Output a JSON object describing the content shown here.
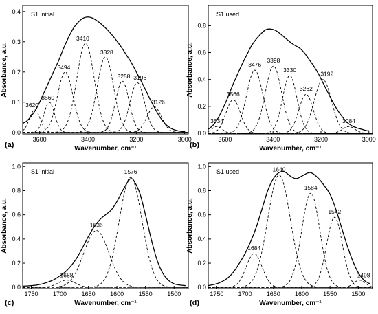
{
  "chart_data": [
    {
      "type": "line",
      "panel_label": "(a)",
      "annotation": "S1 initial",
      "xlabel": "Wavenumber, cm⁻¹",
      "ylabel": "Absorbance, a.u.",
      "xlim": [
        3670,
        2985
      ],
      "ylim": [
        -0.005,
        0.42
      ],
      "xticks": [
        3600,
        3400,
        3200,
        3000
      ],
      "xtick_labels": [
        "3600",
        "3400",
        "3200",
        "3000"
      ],
      "yticks": [
        0.0,
        0.1,
        0.2,
        0.3,
        0.4
      ],
      "ytick_labels": [
        "0.0",
        "0.1",
        "0.2",
        "0.3",
        "0.4"
      ],
      "envelope": {
        "x": [
          3670,
          3650,
          3620,
          3600,
          3580,
          3560,
          3540,
          3520,
          3500,
          3480,
          3460,
          3440,
          3420,
          3400,
          3380,
          3360,
          3340,
          3320,
          3300,
          3280,
          3260,
          3240,
          3220,
          3200,
          3180,
          3160,
          3140,
          3120,
          3100,
          3080,
          3060,
          3040,
          3020,
          3000
        ],
        "y": [
          0.03,
          0.04,
          0.07,
          0.1,
          0.135,
          0.17,
          0.205,
          0.24,
          0.28,
          0.315,
          0.345,
          0.365,
          0.378,
          0.382,
          0.378,
          0.368,
          0.355,
          0.34,
          0.322,
          0.302,
          0.28,
          0.255,
          0.23,
          0.2,
          0.17,
          0.138,
          0.105,
          0.075,
          0.048,
          0.028,
          0.015,
          0.008,
          0.004,
          0.003
        ]
      },
      "bands": [
        {
          "label": "3620",
          "center": 3620,
          "height": 0.075,
          "width": 22
        },
        {
          "label": "3560",
          "center": 3560,
          "height": 0.1,
          "width": 22
        },
        {
          "label": "3494",
          "center": 3494,
          "height": 0.2,
          "width": 32
        },
        {
          "label": "3410",
          "center": 3410,
          "height": 0.295,
          "width": 36
        },
        {
          "label": "3328",
          "center": 3328,
          "height": 0.25,
          "width": 34
        },
        {
          "label": "3258",
          "center": 3258,
          "height": 0.17,
          "width": 28
        },
        {
          "label": "3196",
          "center": 3196,
          "height": 0.165,
          "width": 30
        },
        {
          "label": "3126",
          "center": 3126,
          "height": 0.085,
          "width": 30
        }
      ]
    },
    {
      "type": "line",
      "panel_label": "(b)",
      "annotation": "S1 used",
      "xlabel": "Wavenumber, cm⁻¹",
      "ylabel": "Absorbance, a.u.",
      "xlim": [
        3670,
        2985
      ],
      "ylim": [
        -0.005,
        0.95
      ],
      "xticks": [
        3600,
        3400,
        3200,
        3000
      ],
      "xtick_labels": [
        "3600",
        "3400",
        "3200",
        "3000"
      ],
      "yticks": [
        0.0,
        0.2,
        0.4,
        0.6,
        0.8
      ],
      "ytick_labels": [
        "0.0",
        "0.2",
        "0.4",
        "0.6",
        "0.8"
      ],
      "envelope": {
        "x": [
          3670,
          3650,
          3630,
          3610,
          3590,
          3570,
          3550,
          3530,
          3510,
          3490,
          3470,
          3450,
          3430,
          3410,
          3390,
          3370,
          3350,
          3330,
          3310,
          3290,
          3270,
          3250,
          3230,
          3210,
          3190,
          3170,
          3150,
          3130,
          3110,
          3090,
          3070,
          3050,
          3030,
          3010,
          3000
        ],
        "y": [
          0.03,
          0.06,
          0.11,
          0.18,
          0.26,
          0.35,
          0.43,
          0.51,
          0.58,
          0.65,
          0.7,
          0.74,
          0.77,
          0.775,
          0.765,
          0.74,
          0.71,
          0.68,
          0.655,
          0.635,
          0.6,
          0.55,
          0.5,
          0.44,
          0.37,
          0.3,
          0.23,
          0.17,
          0.12,
          0.08,
          0.055,
          0.04,
          0.03,
          0.02,
          0.02
        ]
      },
      "bands": [
        {
          "label": "3634",
          "center": 3634,
          "height": 0.05,
          "width": 22
        },
        {
          "label": "3566",
          "center": 3566,
          "height": 0.25,
          "width": 30
        },
        {
          "label": "3476",
          "center": 3476,
          "height": 0.47,
          "width": 34
        },
        {
          "label": "3398",
          "center": 3398,
          "height": 0.5,
          "width": 34
        },
        {
          "label": "3330",
          "center": 3330,
          "height": 0.43,
          "width": 30
        },
        {
          "label": "3262",
          "center": 3262,
          "height": 0.29,
          "width": 30
        },
        {
          "label": "3192",
          "center": 3192,
          "height": 0.4,
          "width": 36
        },
        {
          "label": "3084",
          "center": 3084,
          "height": 0.05,
          "width": 26
        }
      ]
    },
    {
      "type": "line",
      "panel_label": "(c)",
      "annotation": "S1 initial",
      "xlabel": "Wavenumber, cm⁻¹",
      "ylabel": "Absorbance, a.u.",
      "xlim": [
        1765,
        1475
      ],
      "ylim": [
        -0.01,
        1.03
      ],
      "xticks": [
        1750,
        1700,
        1650,
        1600,
        1550,
        1500
      ],
      "xtick_labels": [
        "1750",
        "1700",
        "1650",
        "1600",
        "1550",
        "1500"
      ],
      "yticks": [
        0.0,
        0.2,
        0.4,
        0.6,
        0.8,
        1.0
      ],
      "ytick_labels": [
        "0.0",
        "0.2",
        "0.4",
        "0.6",
        "0.8",
        "1.0"
      ],
      "envelope": {
        "x": [
          1765,
          1750,
          1740,
          1730,
          1720,
          1710,
          1700,
          1690,
          1680,
          1670,
          1660,
          1650,
          1640,
          1630,
          1620,
          1610,
          1600,
          1590,
          1580,
          1575,
          1570,
          1560,
          1550,
          1540,
          1530,
          1520,
          1510,
          1500,
          1490,
          1480
        ],
        "y": [
          0.01,
          0.015,
          0.02,
          0.03,
          0.045,
          0.065,
          0.095,
          0.13,
          0.18,
          0.245,
          0.33,
          0.42,
          0.5,
          0.56,
          0.6,
          0.64,
          0.71,
          0.8,
          0.88,
          0.9,
          0.88,
          0.78,
          0.6,
          0.4,
          0.23,
          0.12,
          0.06,
          0.03,
          0.02,
          0.015
        ]
      },
      "bands": [
        {
          "label": "1688",
          "center": 1688,
          "height": 0.06,
          "width": 15
        },
        {
          "label": "1636",
          "center": 1636,
          "height": 0.47,
          "width": 22
        },
        {
          "label": "1576",
          "center": 1576,
          "height": 0.91,
          "width": 20
        }
      ]
    },
    {
      "type": "line",
      "panel_label": "(d)",
      "annotation": "S1 used",
      "xlabel": "Wavenumber, cm⁻¹",
      "ylabel": "Absorbance, a.u.",
      "xlim": [
        1765,
        1475
      ],
      "ylim": [
        -0.01,
        1.03
      ],
      "xticks": [
        1750,
        1700,
        1650,
        1600,
        1550,
        1500
      ],
      "xtick_labels": [
        "1750",
        "1700",
        "1650",
        "1600",
        "1550",
        "1500"
      ],
      "yticks": [
        0.0,
        0.2,
        0.4,
        0.6,
        0.8,
        1.0
      ],
      "ytick_labels": [
        "0.0",
        "0.2",
        "0.4",
        "0.6",
        "0.8",
        "1.0"
      ],
      "envelope": {
        "x": [
          1765,
          1750,
          1740,
          1730,
          1720,
          1710,
          1700,
          1690,
          1680,
          1670,
          1660,
          1650,
          1640,
          1630,
          1620,
          1610,
          1600,
          1590,
          1585,
          1580,
          1570,
          1560,
          1550,
          1540,
          1530,
          1520,
          1510,
          1500,
          1490,
          1480
        ],
        "y": [
          0.015,
          0.03,
          0.05,
          0.08,
          0.13,
          0.2,
          0.28,
          0.38,
          0.5,
          0.65,
          0.8,
          0.9,
          0.95,
          0.955,
          0.92,
          0.9,
          0.92,
          0.945,
          0.95,
          0.94,
          0.9,
          0.84,
          0.77,
          0.65,
          0.5,
          0.35,
          0.22,
          0.12,
          0.06,
          0.03
        ]
      },
      "bands": [
        {
          "label": "1684",
          "center": 1684,
          "height": 0.28,
          "width": 14
        },
        {
          "label": "1640",
          "center": 1640,
          "height": 0.93,
          "width": 20
        },
        {
          "label": "1584",
          "center": 1584,
          "height": 0.78,
          "width": 16
        },
        {
          "label": "1542",
          "center": 1542,
          "height": 0.58,
          "width": 14
        },
        {
          "label": "1498",
          "center": 1498,
          "height": 0.06,
          "width": 10
        }
      ]
    }
  ]
}
